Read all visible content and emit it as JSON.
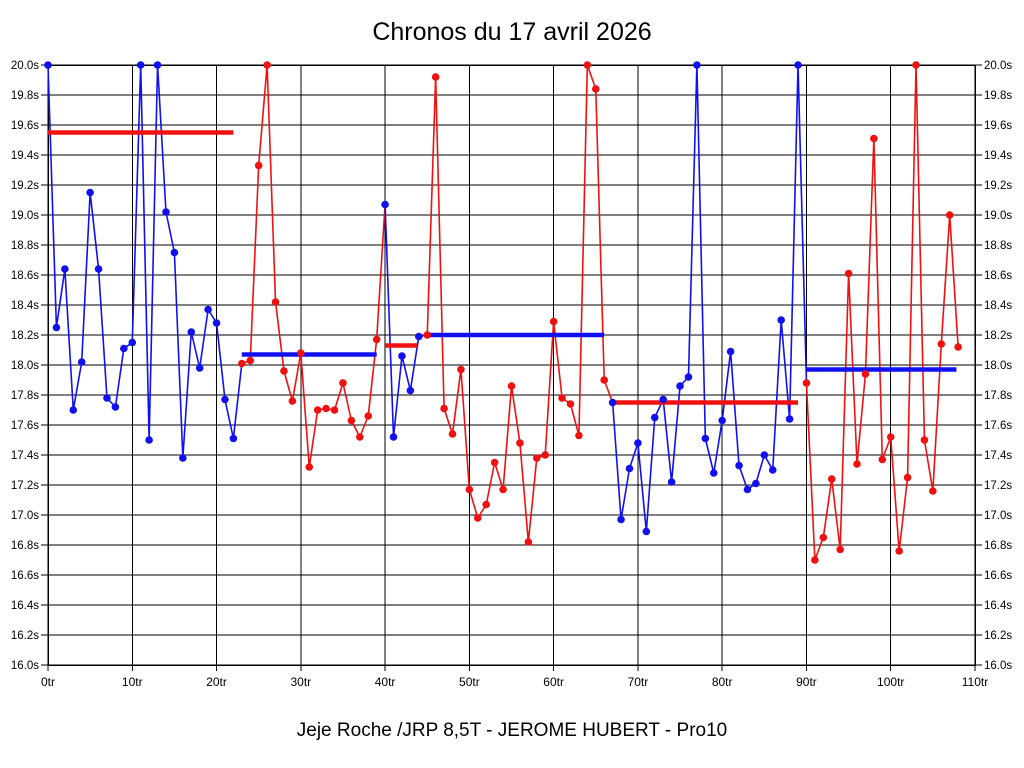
{
  "chart_data": {
    "type": "line",
    "title": "Chronos du 17 avril 2026",
    "caption": "Jeje Roche /JRP 8,5T - JEROME HUBERT - Pro10",
    "x_unit": "tr",
    "y_unit": "s",
    "xlim": [
      0,
      110
    ],
    "ylim": [
      16.0,
      20.0
    ],
    "x_tick_step": 10,
    "y_tick_step": 0.2,
    "grid": true,
    "x_tick_labels": [
      "0tr",
      "10tr",
      "20tr",
      "30tr",
      "40tr",
      "50tr",
      "60tr",
      "70tr",
      "80tr",
      "90tr",
      "100tr",
      "110tr"
    ],
    "y_tick_labels_left": [
      "20.0s",
      "19.8s",
      "19.6s",
      "19.4s",
      "19.2s",
      "19.0s",
      "18.8s",
      "18.6s",
      "18.4s",
      "18.2s",
      "18.0s",
      "17.8s",
      "17.6s",
      "17.4s",
      "17.2s",
      "17.0s",
      "16.8s",
      "16.6s",
      "16.4s",
      "16.2s",
      "16.0s"
    ],
    "y_tick_labels_right": [
      "20.0s",
      "19.8s",
      "19.6s",
      "19.4s",
      "19.2s",
      "19.0s",
      "18.8s",
      "18.6s",
      "18.4s",
      "18.2s",
      "18.0s",
      "17.8s",
      "17.6s",
      "17.4s",
      "17.2s",
      "17.0s",
      "16.8s",
      "16.6s",
      "16.4s",
      "16.2s",
      "16.0s"
    ],
    "colors": {
      "red": "#f01010",
      "blue": "#1010f0",
      "grid": "#000000",
      "background": "#ffffff"
    },
    "series": [
      {
        "name": "segment-1",
        "color": "blue",
        "start_lap": 0,
        "values": [
          20.0,
          18.25,
          18.64,
          17.7,
          18.02,
          19.15,
          18.64,
          17.78,
          17.72,
          18.11,
          18.15,
          20.0,
          17.5,
          20.0,
          19.02,
          18.75,
          17.38,
          18.22,
          17.98,
          18.37,
          18.28,
          17.77,
          17.51
        ]
      },
      {
        "name": "segment-2",
        "color": "red",
        "start_lap": 23,
        "values": [
          18.01,
          18.03,
          19.33,
          20.0,
          18.42,
          17.96,
          17.76,
          18.08,
          17.32,
          17.7,
          17.71,
          17.7,
          17.88,
          17.63,
          17.52,
          17.66,
          18.17
        ]
      },
      {
        "name": "segment-3",
        "color": "blue",
        "start_lap": 40,
        "values": [
          19.07,
          17.52,
          18.06,
          17.83,
          18.19
        ]
      },
      {
        "name": "segment-4",
        "color": "red",
        "start_lap": 45,
        "values": [
          18.2,
          19.92,
          17.71,
          17.54,
          17.97,
          17.17,
          16.98,
          17.07,
          17.35,
          17.17,
          17.86,
          17.48,
          16.82,
          17.38,
          17.4,
          18.29,
          17.78,
          17.74,
          17.53,
          20.0,
          19.84,
          17.9
        ]
      },
      {
        "name": "segment-5",
        "color": "blue",
        "start_lap": 67,
        "values": [
          17.75,
          16.97,
          17.31,
          17.48,
          16.89,
          17.65,
          17.77,
          17.22,
          17.86,
          17.92,
          20.0,
          17.51,
          17.28,
          17.63,
          18.09,
          17.33,
          17.17,
          17.21,
          17.4,
          17.3,
          18.3,
          17.64,
          20.0
        ]
      },
      {
        "name": "segment-6",
        "color": "red",
        "start_lap": 90,
        "values": [
          17.88,
          16.7,
          16.85,
          17.24,
          16.77,
          18.61,
          17.34,
          17.94,
          19.51,
          17.37,
          17.52,
          16.76,
          17.25,
          20.0,
          17.5,
          17.16,
          18.14,
          19.0,
          18.12
        ]
      }
    ],
    "average_lines": [
      {
        "value": 19.55,
        "color": "red",
        "from_lap": 0,
        "to_lap": 22
      },
      {
        "value": 18.07,
        "color": "blue",
        "from_lap": 23,
        "to_lap": 39
      },
      {
        "value": 18.13,
        "color": "red",
        "from_lap": 40,
        "to_lap": 43.8
      },
      {
        "value": 18.2,
        "color": "blue",
        "from_lap": 44.7,
        "to_lap": 66
      },
      {
        "value": 17.75,
        "color": "red",
        "from_lap": 66.8,
        "to_lap": 89
      },
      {
        "value": 17.97,
        "color": "blue",
        "from_lap": 90,
        "to_lap": 107.8
      }
    ]
  }
}
